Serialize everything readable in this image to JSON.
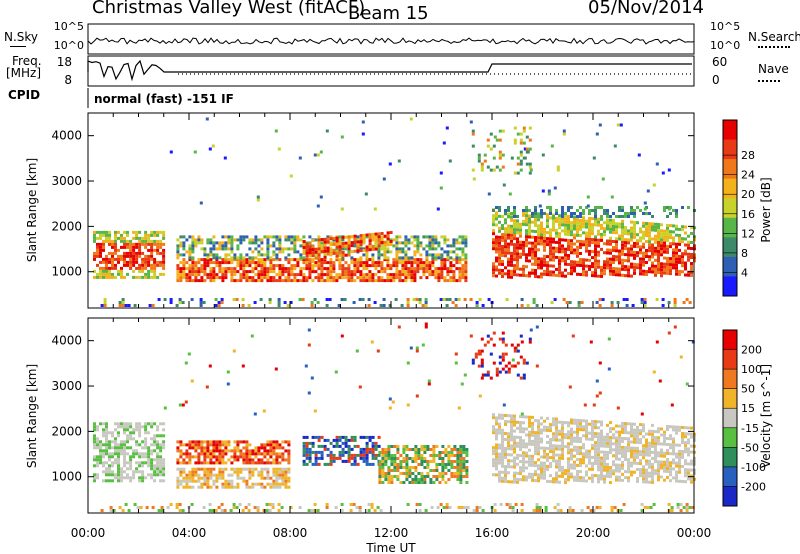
{
  "header": {
    "station": "Christmas Valley West (fitACF)",
    "beam": "Beam 15",
    "date": "05/Nov/2014"
  },
  "summary_panel": {
    "nsky_label": "N.Sky",
    "nsearch_label": "N.Search",
    "noise_ticks_left": [
      "10^5",
      "10^0"
    ],
    "noise_ticks_right": [
      "10^5",
      "10^0"
    ],
    "freq_label_1": "Freq.",
    "freq_label_2": "[MHz]",
    "freq_ticks": [
      "18",
      "8"
    ],
    "nave_label": "Nave",
    "nave_ticks": [
      "60",
      "0"
    ],
    "cpid_label": "CPID",
    "cpid_value": "normal (fast) -151 IF"
  },
  "chart_data": [
    {
      "type": "heatmap",
      "panel": "power",
      "ylabel": "Slant Range [km]",
      "yticks": [
        "1000",
        "2000",
        "3000",
        "4000"
      ],
      "ylim": [
        200,
        4500
      ],
      "xlim": [
        0,
        24
      ],
      "colorbar": {
        "label": "Power [dB]",
        "ticks": [
          "4",
          "8",
          "12",
          "16",
          "20",
          "24",
          "28"
        ],
        "colors": [
          "#1a1aff",
          "#2f5fb5",
          "#3d8a6a",
          "#58b548",
          "#c8d22a",
          "#f3b21c",
          "#f07818",
          "#e83a14",
          "#e60000"
        ]
      }
    },
    {
      "type": "heatmap",
      "panel": "velocity",
      "ylabel": "Slant Range [km]",
      "yticks": [
        "1000",
        "2000",
        "3000",
        "4000"
      ],
      "ylim": [
        200,
        4500
      ],
      "xlim": [
        0,
        24
      ],
      "xlabel": "Time UT",
      "xticks": [
        "00:00",
        "04:00",
        "08:00",
        "12:00",
        "16:00",
        "20:00",
        "00:00"
      ],
      "colorbar": {
        "label": "Velocity [m s^-1]",
        "ticks": [
          "200",
          "100",
          "50",
          "15",
          "-15",
          "-50",
          "-100",
          "-200"
        ],
        "colors": [
          "#1a28c8",
          "#2860c0",
          "#2f8f5a",
          "#58c040",
          "#c8c8c0",
          "#f0b428",
          "#f07820",
          "#e83a14",
          "#e60000"
        ]
      }
    }
  ]
}
